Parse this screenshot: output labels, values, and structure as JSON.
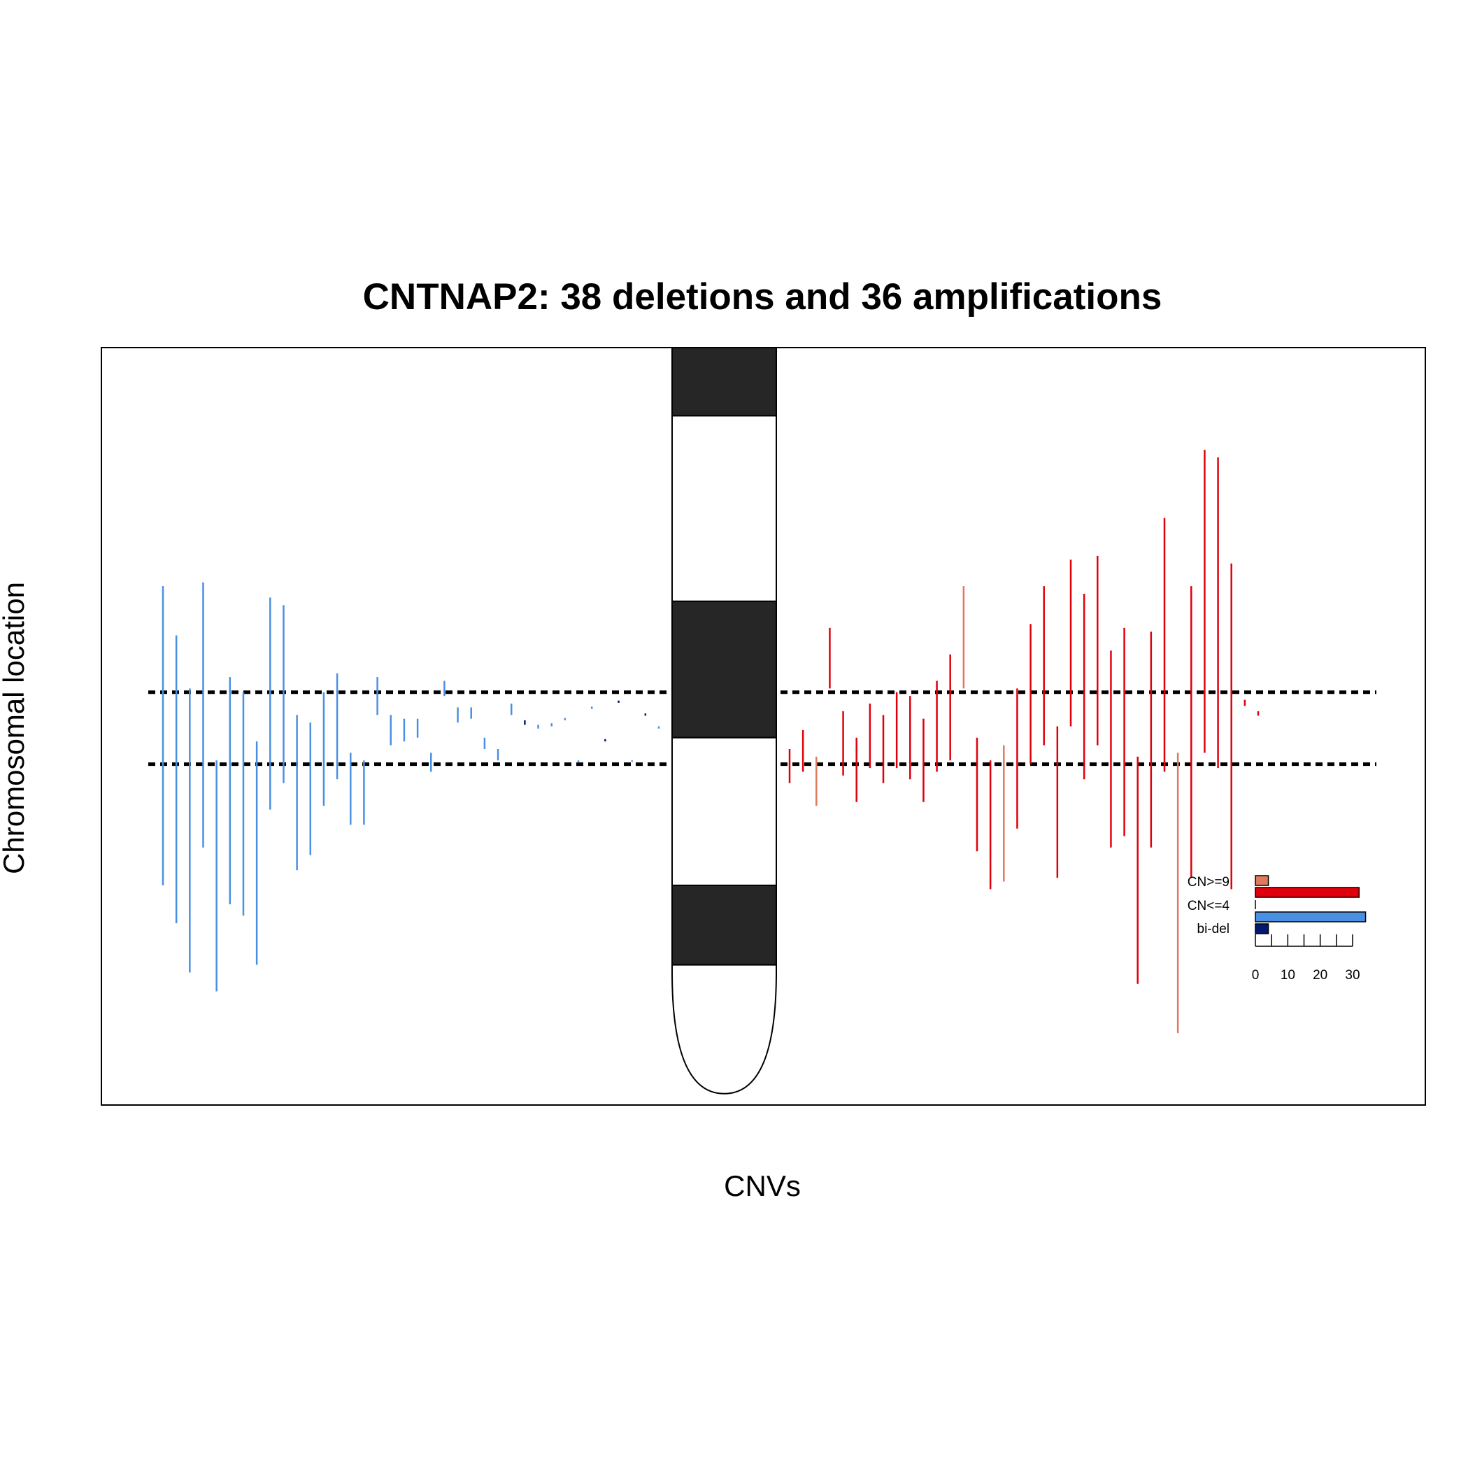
{
  "chart_data": {
    "type": "segment",
    "title": "CNTNAP2: 38 deletions and 36 amplifications",
    "xlabel": "CNVs",
    "ylabel": "Chromosomal location",
    "y_range": [
      0,
      100
    ],
    "gene_region": [
      45.5,
      55
    ],
    "colors": {
      "deletion": "#4a90e2",
      "bi_deletion": "#001a70",
      "amplification": "#e0000b",
      "high_amplification": "#e07a5f",
      "band_dark": "#262626",
      "gene_line": "#000000"
    },
    "chromosome": {
      "bands": [
        {
          "start": 0,
          "end": 9,
          "stain": "dark"
        },
        {
          "start": 9,
          "end": 33.5,
          "stain": "light"
        },
        {
          "start": 33.5,
          "end": 51.5,
          "stain": "dark"
        },
        {
          "start": 51.5,
          "end": 71,
          "stain": "light"
        },
        {
          "start": 71,
          "end": 81.5,
          "stain": "dark"
        },
        {
          "start": 81.5,
          "end": 98.5,
          "stain": "light",
          "terminal": true
        }
      ]
    },
    "deletions": [
      {
        "start": 31.5,
        "end": 71,
        "class": "del"
      },
      {
        "start": 38,
        "end": 76,
        "class": "del"
      },
      {
        "start": 45,
        "end": 82.5,
        "class": "del"
      },
      {
        "start": 31,
        "end": 66,
        "class": "del"
      },
      {
        "start": 54.5,
        "end": 85,
        "class": "del"
      },
      {
        "start": 43.5,
        "end": 73.5,
        "class": "del"
      },
      {
        "start": 45.5,
        "end": 75,
        "class": "del"
      },
      {
        "start": 52,
        "end": 81.5,
        "class": "del"
      },
      {
        "start": 33,
        "end": 61,
        "class": "del"
      },
      {
        "start": 34,
        "end": 57.5,
        "class": "del"
      },
      {
        "start": 48.5,
        "end": 69,
        "class": "del"
      },
      {
        "start": 49.5,
        "end": 67,
        "class": "del"
      },
      {
        "start": 45.5,
        "end": 60.5,
        "class": "del"
      },
      {
        "start": 43,
        "end": 57,
        "class": "del"
      },
      {
        "start": 53.5,
        "end": 63,
        "class": "del"
      },
      {
        "start": 54.5,
        "end": 63,
        "class": "del"
      },
      {
        "start": 43.5,
        "end": 48.5,
        "class": "del"
      },
      {
        "start": 48.5,
        "end": 52.5,
        "class": "del"
      },
      {
        "start": 49,
        "end": 52,
        "class": "del"
      },
      {
        "start": 49,
        "end": 51.5,
        "class": "del"
      },
      {
        "start": 53.5,
        "end": 56,
        "class": "del"
      },
      {
        "start": 44,
        "end": 46,
        "class": "del"
      },
      {
        "start": 47.5,
        "end": 49.5,
        "class": "del"
      },
      {
        "start": 47.5,
        "end": 49,
        "class": "del"
      },
      {
        "start": 51.5,
        "end": 53,
        "class": "del"
      },
      {
        "start": 53,
        "end": 54.5,
        "class": "del"
      },
      {
        "start": 47,
        "end": 48.5,
        "class": "del"
      },
      {
        "start": 49.2,
        "end": 49.8,
        "class": "bi-del"
      },
      {
        "start": 49.8,
        "end": 50.3,
        "class": "del"
      },
      {
        "start": 49.6,
        "end": 50,
        "class": "del"
      },
      {
        "start": 48.9,
        "end": 49.2,
        "class": "del"
      },
      {
        "start": 54.5,
        "end": 54.8,
        "class": "del"
      },
      {
        "start": 47.4,
        "end": 47.7,
        "class": "del"
      },
      {
        "start": 51.7,
        "end": 52,
        "class": "bi-del"
      },
      {
        "start": 46.6,
        "end": 46.9,
        "class": "bi-del"
      },
      {
        "start": 54.5,
        "end": 54.7,
        "class": "del"
      },
      {
        "start": 48.3,
        "end": 48.6,
        "class": "bi-del"
      },
      {
        "start": 50,
        "end": 50.3,
        "class": "del"
      }
    ],
    "amplifications": [
      {
        "start": 53,
        "end": 57.5,
        "class": "amp"
      },
      {
        "start": 50.5,
        "end": 56,
        "class": "amp"
      },
      {
        "start": 54,
        "end": 60.5,
        "class": "high-amp"
      },
      {
        "start": 37,
        "end": 45,
        "class": "amp"
      },
      {
        "start": 48,
        "end": 56.5,
        "class": "amp"
      },
      {
        "start": 51.5,
        "end": 60,
        "class": "amp"
      },
      {
        "start": 47,
        "end": 55.5,
        "class": "amp"
      },
      {
        "start": 48.5,
        "end": 57.5,
        "class": "amp"
      },
      {
        "start": 45.5,
        "end": 55.5,
        "class": "amp"
      },
      {
        "start": 46,
        "end": 57,
        "class": "amp"
      },
      {
        "start": 49,
        "end": 60,
        "class": "amp"
      },
      {
        "start": 44,
        "end": 56,
        "class": "amp"
      },
      {
        "start": 40.5,
        "end": 54.5,
        "class": "amp"
      },
      {
        "start": 31.5,
        "end": 45,
        "class": "high-amp"
      },
      {
        "start": 51.5,
        "end": 66.5,
        "class": "amp"
      },
      {
        "start": 54.5,
        "end": 71.5,
        "class": "amp"
      },
      {
        "start": 52.5,
        "end": 70.5,
        "class": "high-amp"
      },
      {
        "start": 45,
        "end": 63.5,
        "class": "amp"
      },
      {
        "start": 36.5,
        "end": 55,
        "class": "amp"
      },
      {
        "start": 31.5,
        "end": 52.5,
        "class": "amp"
      },
      {
        "start": 50,
        "end": 70,
        "class": "amp"
      },
      {
        "start": 28,
        "end": 50,
        "class": "amp"
      },
      {
        "start": 32.5,
        "end": 57,
        "class": "amp"
      },
      {
        "start": 27.5,
        "end": 52.5,
        "class": "amp"
      },
      {
        "start": 40,
        "end": 66,
        "class": "amp"
      },
      {
        "start": 37,
        "end": 64.5,
        "class": "amp"
      },
      {
        "start": 54,
        "end": 84,
        "class": "amp"
      },
      {
        "start": 37.5,
        "end": 66,
        "class": "amp"
      },
      {
        "start": 22.5,
        "end": 56,
        "class": "amp"
      },
      {
        "start": 53.5,
        "end": 90.5,
        "class": "high-amp"
      },
      {
        "start": 31.5,
        "end": 70,
        "class": "amp"
      },
      {
        "start": 13.5,
        "end": 53.5,
        "class": "amp"
      },
      {
        "start": 14.5,
        "end": 55.5,
        "class": "amp"
      },
      {
        "start": 28.5,
        "end": 71.5,
        "class": "amp"
      },
      {
        "start": 46.5,
        "end": 47.3,
        "class": "amp"
      },
      {
        "start": 48,
        "end": 48.6,
        "class": "amp"
      }
    ],
    "legend": {
      "title": "",
      "categories": [
        "CN>=9",
        "CN<=4",
        "bi-del"
      ],
      "bars": [
        {
          "category": "CN>=9",
          "series": "high-amplification",
          "value": 4
        },
        {
          "category": "CN>=9",
          "series": "amplification",
          "value": 32
        },
        {
          "category": "CN<=4",
          "series": "deletion",
          "value": 34
        },
        {
          "category": "bi-del",
          "series": "bi-deletion",
          "value": 4
        }
      ],
      "ticks": [
        0,
        5,
        10,
        15,
        20,
        25,
        30
      ],
      "tick_labels": [
        "0",
        "10",
        "20",
        "30"
      ],
      "xlim": [
        0,
        30
      ]
    }
  }
}
